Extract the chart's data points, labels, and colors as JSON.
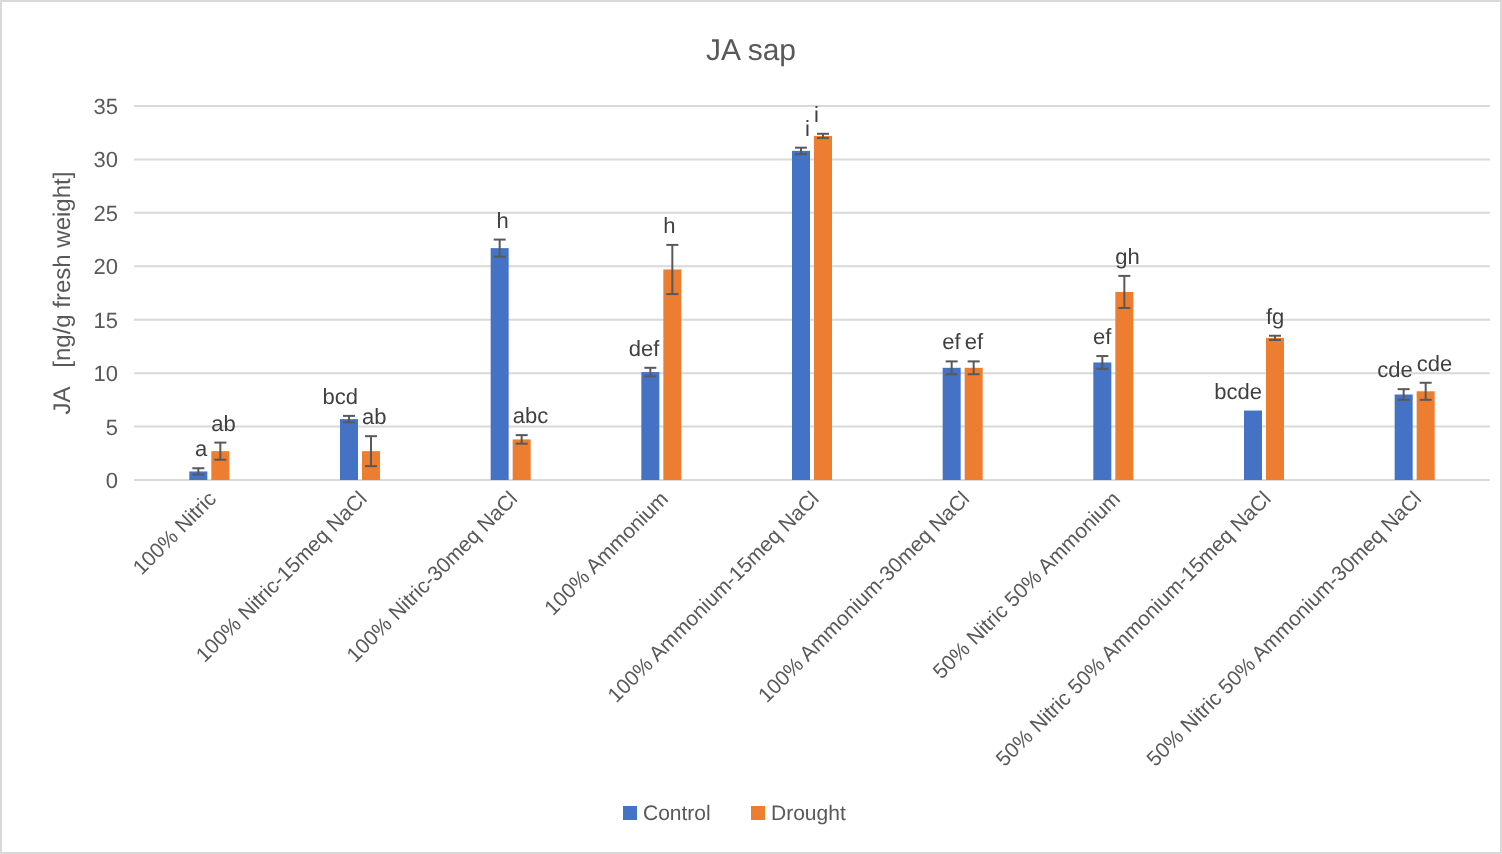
{
  "chart_data": {
    "type": "bar",
    "title": "JA sap",
    "ylabel": "JA   [ng/g fresh weight]",
    "categories": [
      "100% Nitric",
      "100% Nitric-15meq NaCl",
      "100% Nitric-30meq NaCl",
      "100% Ammonium",
      "100% Ammonium-15meq NaCl",
      "100% Ammonium-30meq NaCl",
      "50% Nitric 50% Ammonium",
      "50% Nitric 50% Ammonium-15meq NaCl",
      "50% Nitric 50% Ammonium-30meq NaCl"
    ],
    "series": [
      {
        "name": "Control",
        "color": "#4472c4",
        "values": [
          0.8,
          5.7,
          21.7,
          10.1,
          30.8,
          10.5,
          11.0,
          6.5,
          8.0
        ],
        "errors": [
          0.3,
          0.3,
          0.8,
          0.4,
          0.3,
          0.6,
          0.6,
          null,
          0.5
        ],
        "value_labels": [
          "a",
          "bcd",
          "h",
          "def",
          "i",
          "ef",
          "ef",
          "bcde",
          "cde"
        ]
      },
      {
        "name": "Drought",
        "color": "#ed7d31",
        "values": [
          2.7,
          2.7,
          3.8,
          19.7,
          32.2,
          10.5,
          17.6,
          13.3,
          8.3
        ],
        "errors": [
          0.8,
          1.4,
          0.4,
          2.3,
          0.2,
          0.6,
          1.5,
          0.2,
          0.8
        ],
        "value_labels": [
          "ab",
          "ab",
          "abc",
          "h",
          "i",
          "ef",
          "gh",
          "fg",
          "cde"
        ]
      }
    ],
    "ylim": [
      0,
      35
    ],
    "yticks": [
      0,
      5,
      10,
      15,
      20,
      25,
      30,
      35
    ],
    "grid": "y",
    "legend": "bottom"
  }
}
